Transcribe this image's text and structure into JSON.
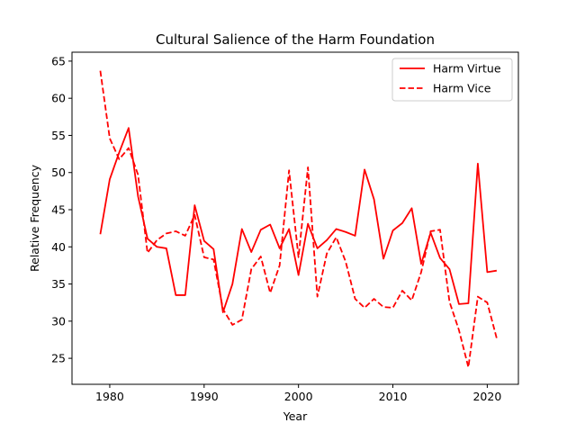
{
  "chart_data": {
    "type": "line",
    "title": "Cultural Salience of the Harm Foundation",
    "xlabel": "Year",
    "ylabel": "Relative Frequency",
    "xlim": [
      1976,
      2023.3
    ],
    "ylim": [
      21.5,
      66.2
    ],
    "xticks": [
      1980,
      1990,
      2000,
      2010,
      2020
    ],
    "yticks": [
      25,
      30,
      35,
      40,
      45,
      50,
      55,
      60,
      65
    ],
    "grid": false,
    "legend_position": "top-right",
    "x": [
      1979,
      1980,
      1981,
      1982,
      1983,
      1984,
      1985,
      1986,
      1987,
      1988,
      1989,
      1990,
      1991,
      1992,
      1993,
      1994,
      1995,
      1996,
      1997,
      1998,
      1999,
      2000,
      2001,
      2002,
      2003,
      2004,
      2005,
      2006,
      2007,
      2008,
      2009,
      2010,
      2011,
      2012,
      2013,
      2014,
      2015,
      2016,
      2017,
      2018,
      2019,
      2020,
      2021
    ],
    "series": [
      {
        "name": "Harm Virtue",
        "color": "#ff0000",
        "style": "solid",
        "values": [
          41.7,
          49.1,
          52.7,
          56.0,
          46.8,
          41.1,
          40.0,
          39.8,
          33.5,
          33.5,
          45.6,
          40.8,
          39.7,
          31.2,
          35.0,
          42.4,
          39.3,
          42.3,
          43.0,
          39.8,
          42.4,
          36.2,
          43.1,
          39.8,
          40.9,
          42.4,
          42.0,
          41.5,
          50.4,
          46.4,
          38.4,
          42.2,
          43.2,
          45.2,
          37.7,
          41.9,
          38.5,
          37.0,
          32.3,
          32.4,
          51.2,
          36.6,
          36.8
        ]
      },
      {
        "name": "Harm Vice",
        "color": "#ff0000",
        "style": "dashed",
        "values": [
          63.7,
          54.6,
          51.8,
          53.3,
          49.7,
          39.2,
          40.9,
          41.8,
          42.1,
          41.5,
          44.3,
          38.6,
          38.3,
          31.6,
          29.5,
          30.2,
          37.0,
          38.7,
          33.8,
          37.5,
          50.3,
          38.6,
          50.7,
          33.3,
          39.1,
          41.3,
          38.0,
          33.0,
          31.8,
          33.0,
          31.9,
          31.8,
          34.1,
          32.8,
          36.6,
          42.1,
          42.3,
          32.6,
          28.8,
          23.8,
          33.3,
          32.5,
          27.7
        ]
      }
    ]
  }
}
